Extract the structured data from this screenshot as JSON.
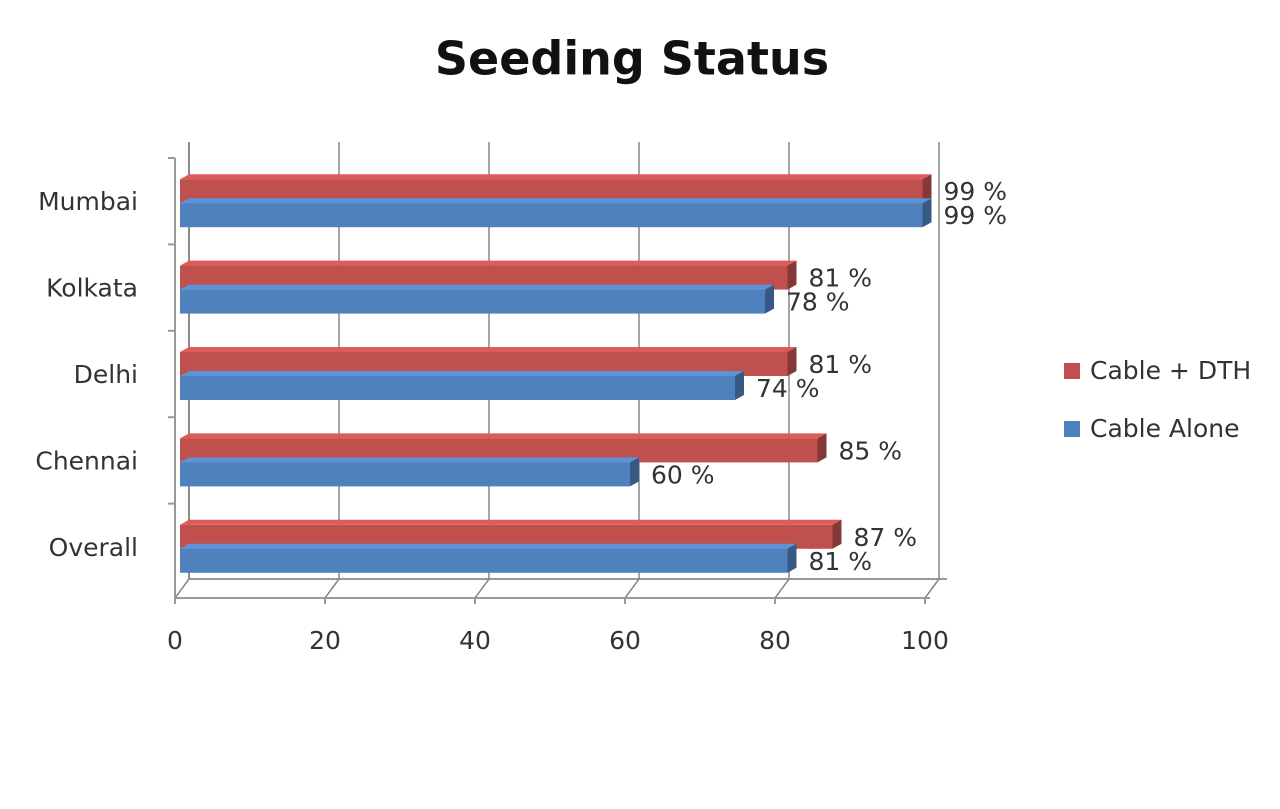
{
  "chart_data": {
    "type": "bar",
    "orientation": "horizontal",
    "title": "Seeding Status",
    "categories": [
      "Mumbai",
      "Kolkata",
      "Delhi",
      "Chennai",
      "Overall"
    ],
    "series": [
      {
        "name": "Cable + DTH",
        "color": "#c0504d",
        "values": [
          99,
          81,
          81,
          85,
          87
        ],
        "value_labels": [
          "99 %",
          "81 %",
          "81 %",
          "85 %",
          "87 %"
        ]
      },
      {
        "name": "Cable Alone",
        "color": "#4f81bd",
        "values": [
          99,
          78,
          74,
          60,
          81
        ],
        "value_labels": [
          "99 %",
          "78 %",
          "74 %",
          "60 %",
          "81 %"
        ]
      }
    ],
    "xlim": [
      0,
      100
    ],
    "xticks": [
      0,
      20,
      40,
      60,
      80,
      100
    ],
    "grid": true,
    "legend": "right"
  }
}
